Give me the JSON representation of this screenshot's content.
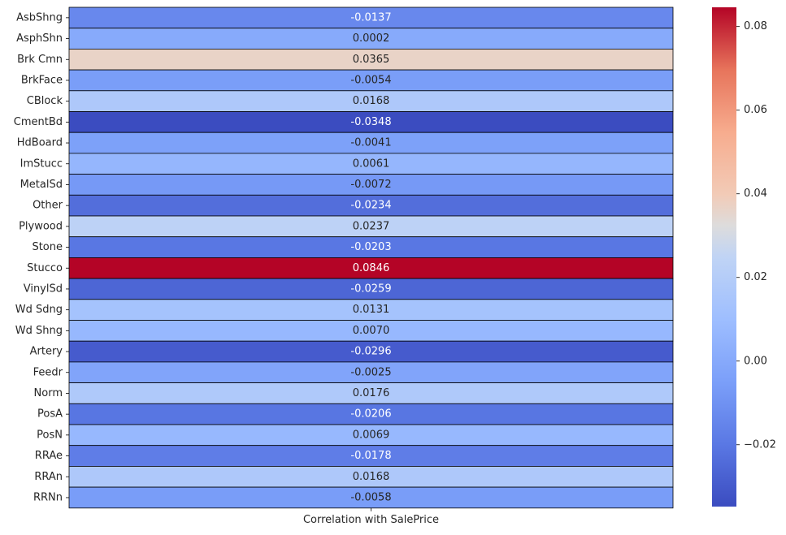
{
  "chart_data": {
    "type": "heatmap",
    "xlabel": "",
    "ylabel": "",
    "columns": [
      "Correlation with SalePrice"
    ],
    "rows": [
      "AsbShng",
      "AsphShn",
      "Brk Cmn",
      "BrkFace",
      "CBlock",
      "CmentBd",
      "HdBoard",
      "ImStucc",
      "MetalSd",
      "Other",
      "Plywood",
      "Stone",
      "Stucco",
      "VinylSd",
      "Wd Sdng",
      "Wd Shng",
      "Artery",
      "Feedr",
      "Norm",
      "PosA",
      "PosN",
      "RRAe",
      "RRAn",
      "RRNn"
    ],
    "values": [
      -0.0137,
      0.0002,
      0.0365,
      -0.0054,
      0.0168,
      -0.0348,
      -0.0041,
      0.0061,
      -0.0072,
      -0.0234,
      0.0237,
      -0.0203,
      0.0846,
      -0.0259,
      0.0131,
      0.007,
      -0.0296,
      -0.0025,
      0.0176,
      -0.0206,
      0.0069,
      -0.0178,
      0.0168,
      -0.0058
    ],
    "value_labels": [
      "-0.0137",
      "0.0002",
      "0.0365",
      "-0.0054",
      "0.0168",
      "-0.0348",
      "-0.0041",
      "0.0061",
      "-0.0072",
      "-0.0234",
      "0.0237",
      "-0.0203",
      "0.0846",
      "-0.0259",
      "0.0131",
      "0.0070",
      "-0.0296",
      "-0.0025",
      "0.0176",
      "-0.0206",
      "0.0069",
      "-0.0178",
      "0.0168",
      "-0.0058"
    ],
    "colormap": "coolwarm",
    "vmin": -0.0348,
    "vmax": 0.0846,
    "colorbar_ticks": [
      -0.02,
      0.0,
      0.02,
      0.04,
      0.06,
      0.08
    ],
    "colorbar_tick_labels": [
      "−0.02",
      "0.00",
      "0.02",
      "0.04",
      "0.06",
      "0.08"
    ],
    "annotated": true,
    "legend": "colorbar-right"
  }
}
